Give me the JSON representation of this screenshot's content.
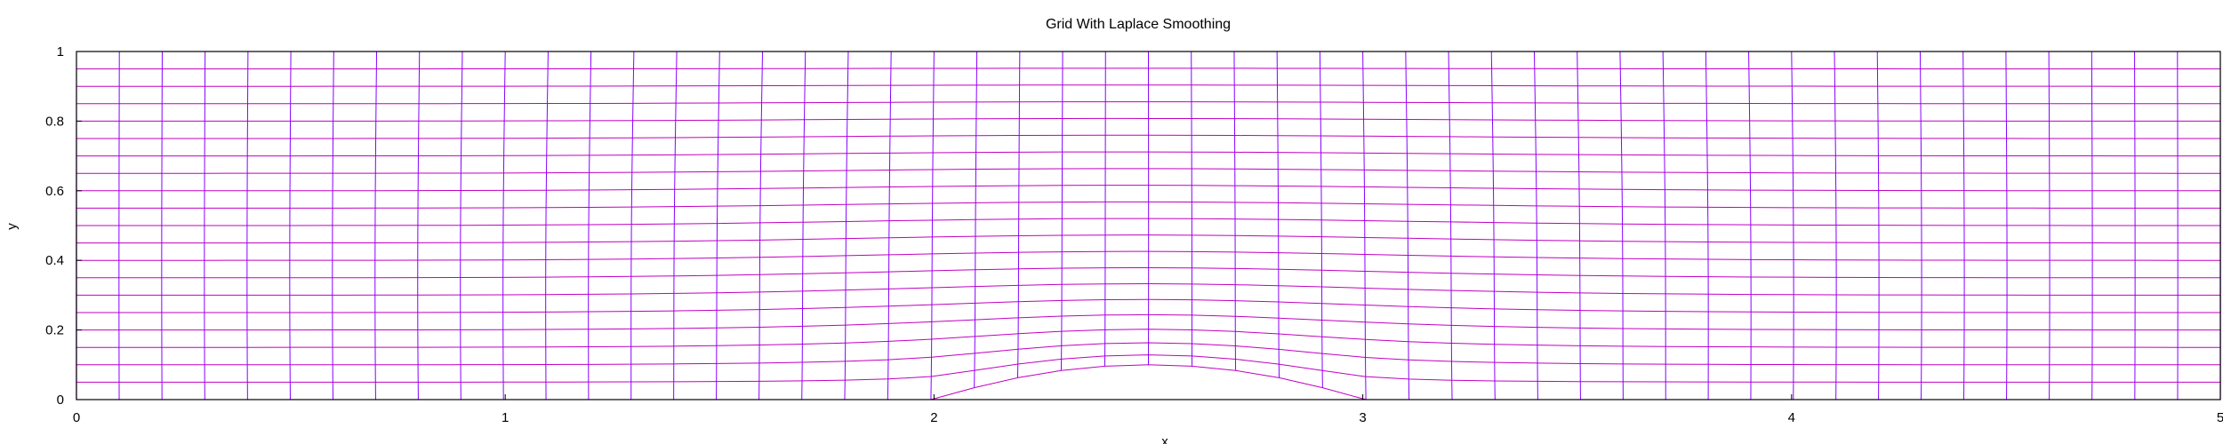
{
  "chart_data": {
    "type": "line",
    "title": "Grid With Laplace Smoothing",
    "xlabel": "x",
    "ylabel": "y",
    "xlim": [
      0,
      5
    ],
    "ylim": [
      0,
      1
    ],
    "x_ticks": [
      "0",
      "1",
      "2",
      "3",
      "4",
      "5"
    ],
    "y_ticks": [
      "0",
      "0.2",
      "0.4",
      "0.6",
      "0.8",
      "1"
    ],
    "grid": {
      "columns": 51,
      "rows": 21,
      "bump": {
        "x_start": 2.0,
        "x_end": 3.0,
        "peak_x": 2.5,
        "peak_y": 0.1
      },
      "line_colors": {
        "vertical": "#8800ff",
        "horizontal": "#c000c0"
      }
    },
    "legend": "none"
  }
}
